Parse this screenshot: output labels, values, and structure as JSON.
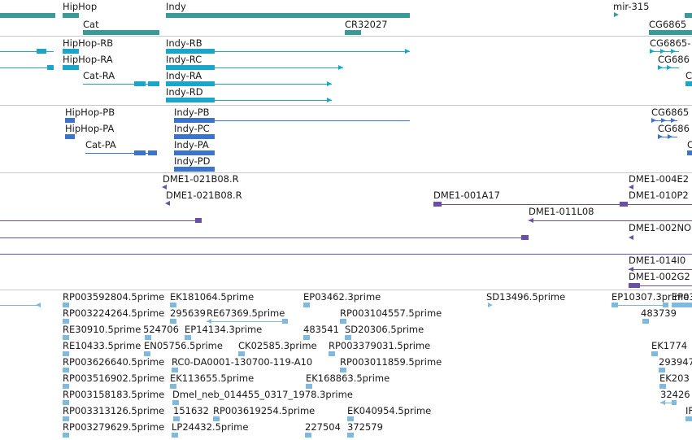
{
  "tracks": {
    "genes": [
      {
        "label": "HipHop"
      },
      {
        "label": "Indy"
      },
      {
        "label": "mir-315"
      },
      {
        "label": "Cat"
      },
      {
        "label": "CR32027"
      },
      {
        "label": "CG6865"
      }
    ],
    "transcripts": [
      {
        "label": "HipHop-RB"
      },
      {
        "label": "HipHop-RA"
      },
      {
        "label": "Cat-RA"
      },
      {
        "label": "Indy-RB"
      },
      {
        "label": "Indy-RC"
      },
      {
        "label": "Indy-RA"
      },
      {
        "label": "Indy-RD"
      },
      {
        "label": "CG6865-"
      },
      {
        "label": "CG686"
      },
      {
        "label": "C"
      }
    ],
    "proteins": [
      {
        "label": "HipHop-PB"
      },
      {
        "label": "HipHop-PA"
      },
      {
        "label": "Cat-PA"
      },
      {
        "label": "Indy-PB"
      },
      {
        "label": "Indy-PC"
      },
      {
        "label": "Indy-PA"
      },
      {
        "label": "Indy-PD"
      },
      {
        "label": "CG6865"
      },
      {
        "label": "CG686"
      },
      {
        "label": "C"
      }
    ],
    "clones": [
      {
        "label": "DME1-021B08.R"
      },
      {
        "label": "DME1-021B08.R"
      },
      {
        "label": "DME1-001A17"
      },
      {
        "label": "DME1-011L08"
      },
      {
        "label": "DME1-004E2"
      },
      {
        "label": "DME1-010P2"
      },
      {
        "label": "DME1-002NO"
      },
      {
        "label": "DME1-014I0"
      },
      {
        "label": "DME1-002G2"
      }
    ],
    "ests": [
      {
        "label": "RP003592804.5prime"
      },
      {
        "label": "EK181064.5prime"
      },
      {
        "label": "EP03462.3prime"
      },
      {
        "label": "SD13496.5prime"
      },
      {
        "label": "EP10307.3prime"
      },
      {
        "label": "EP0393"
      },
      {
        "label": "RP003224264.5prime"
      },
      {
        "label": "295639"
      },
      {
        "label": "RE67369.5prime"
      },
      {
        "label": "RP003104557.5prime"
      },
      {
        "label": "483739"
      },
      {
        "label": "RE30910.5prime"
      },
      {
        "label": "524706"
      },
      {
        "label": "EP14134.3prime"
      },
      {
        "label": "483541"
      },
      {
        "label": "SD20306.5prime"
      },
      {
        "label": "RE10433.5prime"
      },
      {
        "label": "EN05756.5prime"
      },
      {
        "label": "CK02585.3prime"
      },
      {
        "label": "RP003379031.5prime"
      },
      {
        "label": "EK1774"
      },
      {
        "label": "RP003626640.5prime"
      },
      {
        "label": "RC0-DA0001-130700-119-A10"
      },
      {
        "label": "RP003011859.5prime"
      },
      {
        "label": "293947"
      },
      {
        "label": "RP003516902.5prime"
      },
      {
        "label": "EK113655.5prime"
      },
      {
        "label": "EK168863.5prime"
      },
      {
        "label": "EK203"
      },
      {
        "label": "RP003158183.5prime"
      },
      {
        "label": "Dmel_neb_014455_0317_1978.3prime"
      },
      {
        "label": "32426"
      },
      {
        "label": "RP003313126.5prime"
      },
      {
        "label": "151632"
      },
      {
        "label": "RP003619254.5prime"
      },
      {
        "label": "EK040954.5prime"
      },
      {
        "label": "IF"
      },
      {
        "label": "RP003279629.5prime"
      },
      {
        "label": "LP24432.5prime"
      },
      {
        "label": "227504"
      },
      {
        "label": "372579"
      }
    ]
  },
  "colors": {
    "gene": "#3a9a97",
    "transcript": "#1aa6c9",
    "protein": "#3a73d0",
    "clone": "#6b4ea6",
    "est": "#80b9de",
    "separator": "#c8c8c8"
  }
}
